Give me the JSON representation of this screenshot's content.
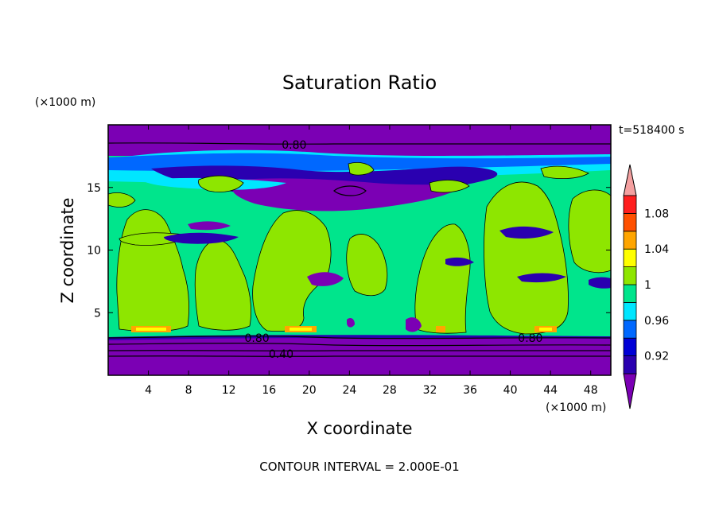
{
  "chart_data": {
    "type": "heatmap",
    "title": "Saturation Ratio",
    "xlabel": "X coordinate",
    "ylabel": "Z coordinate",
    "x_units": "(×1000 m)",
    "y_units": "(×1000 m)",
    "time_label": "t=518400 s",
    "footer": "CONTOUR INTERVAL = 2.000E-01",
    "xlim": [
      0,
      50
    ],
    "ylim": [
      0,
      20
    ],
    "x_ticks": [
      4,
      8,
      12,
      16,
      20,
      24,
      28,
      32,
      36,
      40,
      44,
      48
    ],
    "y_ticks": [
      5,
      10,
      15
    ],
    "contour_labels": [
      {
        "text": "0.80",
        "x": 18.5,
        "y": 18.4
      },
      {
        "text": "0.80",
        "x": 14.8,
        "y": 3.0
      },
      {
        "text": "0.80",
        "x": 42.0,
        "y": 3.0
      },
      {
        "text": "0.40",
        "x": 17.2,
        "y": 1.7
      }
    ],
    "colorbar": {
      "extend": "both",
      "tick_labels": [
        "1.08",
        "1.04",
        "1",
        "0.96",
        "0.92"
      ],
      "levels": [
        0.9,
        0.92,
        0.94,
        0.96,
        0.98,
        1.0,
        1.02,
        1.04,
        1.06,
        1.08,
        1.1
      ],
      "colors": [
        "#7b00b4",
        "#2a00b0",
        "#0000d6",
        "#0068ff",
        "#00e6ff",
        "#00e58c",
        "#8ee600",
        "#ffff00",
        "#ffa500",
        "#ff5000",
        "#ff1e1e",
        "#f4a0a0"
      ]
    },
    "layers": [
      {
        "name": "dry-top",
        "color": "#7b00b4"
      },
      {
        "name": "mid-moist",
        "color": "#00e58c"
      },
      {
        "name": "green-regions",
        "color": "#8ee600"
      },
      {
        "name": "dry-bottom",
        "color": "#7b00b4"
      }
    ]
  }
}
